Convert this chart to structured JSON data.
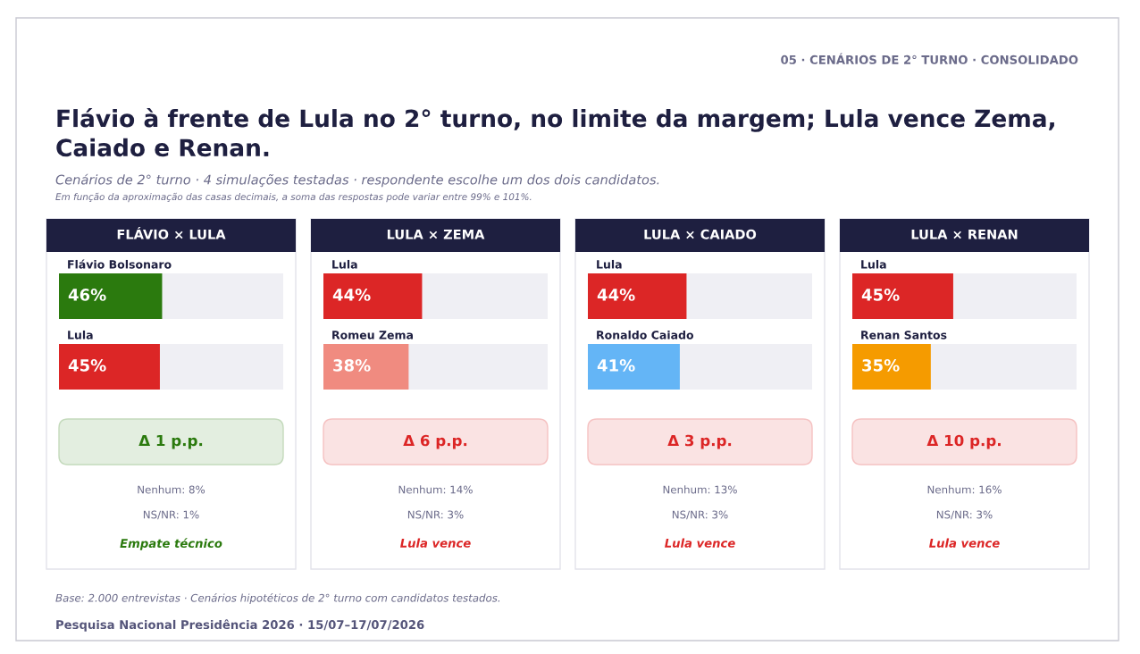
{
  "chart_data": [
    {
      "type": "other",
      "title": "Flávio à frente de Lula no 2° turno, no limite da margem; Lula vence Zema, Caiado e Renan.",
      "subtitle": "Cenários de 2° turno · 4 simulações testadas · respondente escolhe um dos dois candidatos.",
      "annotations": [
        "05 · CENÁRIOS DE 2° TURNO · CONSOLIDADO",
        "Em função da aproximação das casas decimais, a soma das respostas pode variar entre 99% e 101%."
      ]
    },
    {
      "type": "bar",
      "orientation": "horizontal",
      "title": "FLÁVIO × LULA",
      "categories": [
        "Flávio Bolsonaro",
        "Lula"
      ],
      "values": [
        46,
        45
      ],
      "colors": [
        "#2b7a0e",
        "#dc2626"
      ],
      "value_labels": [
        "46%",
        "45%"
      ],
      "xlim": [
        0,
        100
      ],
      "tick_labels": "y",
      "annotations": [
        "Δ 1 p.p.",
        "Nenhum: 8%",
        "NS/NR: 1%",
        "Empate técnico"
      ]
    },
    {
      "type": "bar",
      "orientation": "horizontal",
      "title": "LULA × ZEMA",
      "categories": [
        "Lula",
        "Romeu Zema"
      ],
      "values": [
        44,
        38
      ],
      "colors": [
        "#dc2626",
        "#f08b80"
      ],
      "value_labels": [
        "44%",
        "38%"
      ],
      "xlim": [
        0,
        100
      ],
      "tick_labels": "y",
      "annotations": [
        "Δ 6 p.p.",
        "Nenhum: 14%",
        "NS/NR: 3%",
        "Lula vence"
      ]
    },
    {
      "type": "bar",
      "orientation": "horizontal",
      "title": "LULA × CAIADO",
      "categories": [
        "Lula",
        "Ronaldo Caiado"
      ],
      "values": [
        44,
        41
      ],
      "colors": [
        "#dc2626",
        "#64b5f6"
      ],
      "value_labels": [
        "44%",
        "41%"
      ],
      "xlim": [
        0,
        100
      ],
      "tick_labels": "y",
      "annotations": [
        "Δ 3 p.p.",
        "Nenhum: 13%",
        "NS/NR: 3%",
        "Lula vence"
      ]
    },
    {
      "type": "bar",
      "orientation": "horizontal",
      "title": "LULA × RENAN",
      "categories": [
        "Lula",
        "Renan Santos"
      ],
      "values": [
        45,
        35
      ],
      "colors": [
        "#dc2626",
        "#f59b00"
      ],
      "value_labels": [
        "45%",
        "35%"
      ],
      "xlim": [
        0,
        100
      ],
      "tick_labels": "y",
      "annotations": [
        "Δ 10 p.p.",
        "Nenhum: 16%",
        "NS/NR: 3%",
        "Lula vence"
      ]
    },
    {
      "type": "other",
      "annotations": [
        "Base: 2.000 entrevistas · Cenários hipotéticos de 2° turno com candidatos testados.",
        "Pesquisa Nacional Presidência 2026 · 15/07–17/07/2026"
      ]
    }
  ]
}
